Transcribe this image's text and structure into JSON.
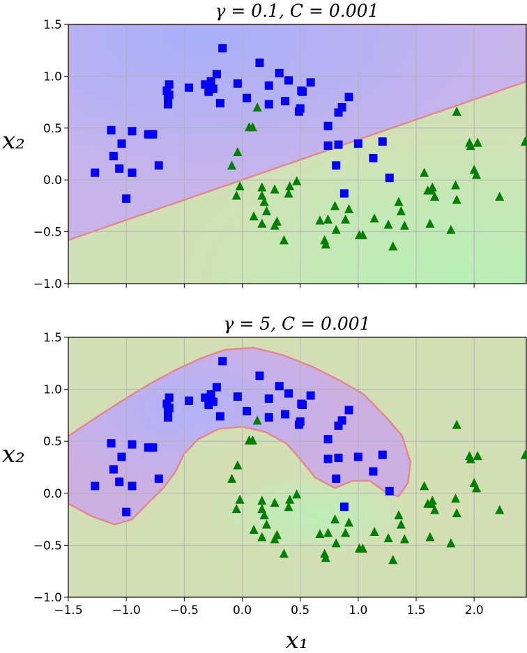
{
  "chart_data": [
    {
      "type": "scatter",
      "title": "γ = 0.1, C = 0.001",
      "xlabel": "",
      "ylabel": "x₂",
      "xlim": [
        -1.5,
        2.45
      ],
      "ylim": [
        -1.0,
        1.5
      ],
      "xticks": [
        -1.5,
        -1.0,
        -0.5,
        0.0,
        0.5,
        1.0,
        1.5,
        2.0
      ],
      "yticks": [
        -1.0,
        -0.5,
        0.0,
        0.5,
        1.0,
        1.5
      ],
      "xtick_labels_visible": false,
      "grid": true,
      "decision_boundary": "linear",
      "colors": {
        "class0": "#0000ff",
        "class1": "#008000",
        "region0": "#b9aef5",
        "region1": "#cfe0b4"
      }
    },
    {
      "type": "scatter",
      "title": "γ = 5, C = 0.001",
      "xlabel": "x₁",
      "ylabel": "x₂",
      "xlim": [
        -1.5,
        2.45
      ],
      "ylim": [
        -1.0,
        1.5
      ],
      "xticks": [
        -1.5,
        -1.0,
        -0.5,
        0.0,
        0.5,
        1.0,
        1.5,
        2.0
      ],
      "yticks": [
        -1.0,
        -0.5,
        0.0,
        0.5,
        1.0,
        1.5
      ],
      "xtick_labels_visible": true,
      "grid": true,
      "decision_boundary": "moon",
      "colors": {
        "class0": "#0000ff",
        "class1": "#008000",
        "region0": "#c6aee6",
        "region1": "#d2dfb4"
      }
    }
  ],
  "points": {
    "class0_squares": [
      [
        -1.27,
        0.07
      ],
      [
        -1.13,
        0.48
      ],
      [
        -1.11,
        0.23
      ],
      [
        -1.06,
        0.11
      ],
      [
        -1.04,
        0.35
      ],
      [
        -1.0,
        -0.18
      ],
      [
        -0.95,
        0.47
      ],
      [
        -0.95,
        0.07
      ],
      [
        -0.81,
        0.44
      ],
      [
        -0.77,
        0.44
      ],
      [
        -0.72,
        0.14
      ],
      [
        -0.65,
        0.86
      ],
      [
        -0.64,
        0.73
      ],
      [
        -0.64,
        0.78
      ],
      [
        -0.63,
        0.92
      ],
      [
        -0.63,
        0.82
      ],
      [
        -0.46,
        0.89
      ],
      [
        -0.32,
        0.92
      ],
      [
        -0.29,
        0.85
      ],
      [
        -0.28,
        0.9
      ],
      [
        -0.27,
        0.95
      ],
      [
        -0.25,
        0.88
      ],
      [
        -0.22,
        1.02
      ],
      [
        -0.19,
        0.74
      ],
      [
        -0.17,
        1.27
      ],
      [
        -0.04,
        0.93
      ],
      [
        0.04,
        0.79
      ],
      [
        0.15,
        1.13
      ],
      [
        0.23,
        0.73
      ],
      [
        0.23,
        0.91
      ],
      [
        0.32,
        1.03
      ],
      [
        0.37,
        0.76
      ],
      [
        0.4,
        0.96
      ],
      [
        0.49,
        0.66
      ],
      [
        0.5,
        0.69
      ],
      [
        0.51,
        0.86
      ],
      [
        0.52,
        0.85
      ],
      [
        0.59,
        0.94
      ],
      [
        0.74,
        0.52
      ],
      [
        0.74,
        0.33
      ],
      [
        0.83,
        0.34
      ],
      [
        0.83,
        0.65
      ],
      [
        0.86,
        0.7
      ],
      [
        0.92,
        0.8
      ],
      [
        1.0,
        0.35
      ],
      [
        0.81,
        0.14
      ],
      [
        0.88,
        -0.13
      ],
      [
        1.13,
        0.21
      ],
      [
        1.21,
        0.37
      ],
      [
        1.27,
        0.02
      ]
    ],
    "class1_triangles": [
      [
        0.13,
        0.7
      ],
      [
        0.06,
        0.51
      ],
      [
        0.09,
        0.51
      ],
      [
        -0.04,
        0.27
      ],
      [
        -0.09,
        0.14
      ],
      [
        -0.02,
        -0.06
      ],
      [
        -0.05,
        -0.15
      ],
      [
        0.1,
        -0.35
      ],
      [
        0.17,
        -0.07
      ],
      [
        0.17,
        -0.15
      ],
      [
        0.19,
        -0.21
      ],
      [
        0.21,
        -0.3
      ],
      [
        0.17,
        -0.42
      ],
      [
        0.28,
        -0.44
      ],
      [
        0.3,
        -0.4
      ],
      [
        0.36,
        -0.58
      ],
      [
        0.28,
        -0.09
      ],
      [
        0.4,
        -0.13
      ],
      [
        0.41,
        -0.06
      ],
      [
        0.47,
        -0.01
      ],
      [
        0.67,
        -0.39
      ],
      [
        0.71,
        -0.58
      ],
      [
        0.72,
        -0.62
      ],
      [
        0.74,
        -0.38
      ],
      [
        0.8,
        -0.25
      ],
      [
        0.81,
        -0.48
      ],
      [
        0.89,
        -0.38
      ],
      [
        0.92,
        -0.28
      ],
      [
        1.01,
        -0.53
      ],
      [
        1.04,
        -0.53
      ],
      [
        1.14,
        -0.37
      ],
      [
        1.26,
        -0.43
      ],
      [
        1.3,
        -0.64
      ],
      [
        1.35,
        -0.21
      ],
      [
        1.37,
        -0.3
      ],
      [
        1.4,
        -0.44
      ],
      [
        1.57,
        0.07
      ],
      [
        1.6,
        -0.1
      ],
      [
        1.62,
        -0.42
      ],
      [
        1.63,
        -0.1
      ],
      [
        1.64,
        -0.07
      ],
      [
        1.66,
        -0.16
      ],
      [
        1.8,
        -0.48
      ],
      [
        1.84,
        -0.05
      ],
      [
        1.85,
        0.66
      ],
      [
        1.85,
        -0.19
      ],
      [
        1.96,
        0.36
      ],
      [
        1.97,
        0.33
      ],
      [
        2.0,
        0.1
      ],
      [
        2.02,
        0.05
      ],
      [
        2.03,
        0.36
      ],
      [
        2.22,
        -0.16
      ],
      [
        2.44,
        0.37
      ]
    ]
  }
}
